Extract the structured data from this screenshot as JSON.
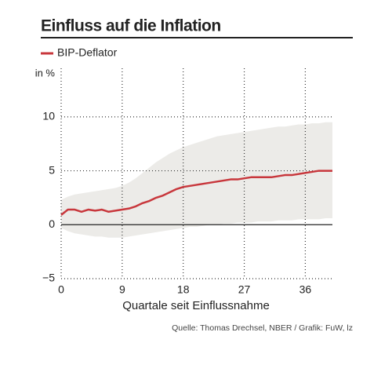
{
  "chart_data": {
    "type": "line",
    "title": "Einfluss auf die Inflation",
    "y_unit": "in %",
    "xlabel": "Quartale seit Einflussnahme",
    "source": "Quelle: Thomas Drechsel, NBER / Grafik: FuW, lz",
    "x": [
      0,
      1,
      2,
      3,
      4,
      5,
      6,
      7,
      8,
      9,
      10,
      11,
      12,
      13,
      14,
      15,
      16,
      17,
      18,
      19,
      20,
      21,
      22,
      23,
      24,
      25,
      26,
      27,
      28,
      29,
      30,
      31,
      32,
      33,
      34,
      35,
      36,
      37,
      38,
      39,
      40
    ],
    "series": [
      {
        "name": "BIP-Deflator",
        "color": "#c8373c",
        "values": [
          0.9,
          1.4,
          1.4,
          1.2,
          1.4,
          1.3,
          1.4,
          1.2,
          1.3,
          1.4,
          1.5,
          1.7,
          2.0,
          2.2,
          2.5,
          2.7,
          3.0,
          3.3,
          3.5,
          3.6,
          3.7,
          3.8,
          3.9,
          4.0,
          4.1,
          4.2,
          4.2,
          4.3,
          4.4,
          4.4,
          4.4,
          4.4,
          4.5,
          4.6,
          4.6,
          4.7,
          4.8,
          4.9,
          5.0,
          5.0,
          5.0
        ]
      }
    ],
    "band": {
      "color": "#ecebe8",
      "upper": [
        2.3,
        2.6,
        2.8,
        2.9,
        3.0,
        3.1,
        3.2,
        3.3,
        3.4,
        3.6,
        3.9,
        4.3,
        4.8,
        5.3,
        5.8,
        6.2,
        6.6,
        6.9,
        7.2,
        7.4,
        7.6,
        7.8,
        8.0,
        8.2,
        8.3,
        8.4,
        8.5,
        8.6,
        8.7,
        8.8,
        8.9,
        9.0,
        9.1,
        9.1,
        9.2,
        9.3,
        9.3,
        9.4,
        9.4,
        9.5,
        9.5
      ],
      "lower": [
        -0.3,
        -0.6,
        -0.8,
        -0.9,
        -1.0,
        -1.1,
        -1.1,
        -1.2,
        -1.2,
        -1.2,
        -1.1,
        -1.0,
        -0.9,
        -0.8,
        -0.7,
        -0.6,
        -0.5,
        -0.4,
        -0.3,
        -0.2,
        -0.2,
        -0.1,
        0,
        0,
        0.1,
        0.1,
        0.2,
        0.2,
        0.2,
        0.3,
        0.3,
        0.3,
        0.4,
        0.4,
        0.4,
        0.5,
        0.5,
        0.5,
        0.5,
        0.6,
        0.6
      ]
    },
    "xlim": [
      0,
      40
    ],
    "xticks": [
      0,
      9,
      18,
      27,
      36
    ],
    "ylim": [
      -5,
      14.5
    ],
    "yticks": [
      {
        "value": -5,
        "label": "−5"
      },
      0,
      5,
      10
    ],
    "grid": true
  }
}
